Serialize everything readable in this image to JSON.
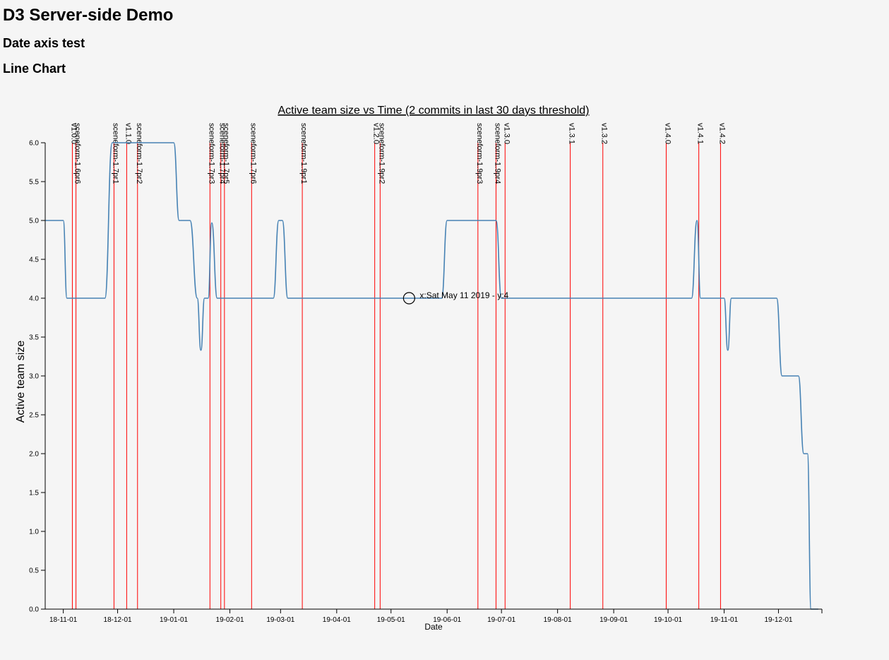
{
  "header": {
    "title": "D3 Server-side Demo",
    "subtitle": "Date axis test",
    "chart_type_label": "Line Chart"
  },
  "chart_data": {
    "type": "line",
    "title": "Active team size vs Time (2 commits in last 30 days threshold)",
    "xlabel": "Date",
    "ylabel": "Active team size",
    "xlim": [
      "2018-10-22",
      "2019-12-25"
    ],
    "ylim": [
      0,
      6
    ],
    "grid": false,
    "x_ticks": [
      {
        "date": "2018-11-01",
        "label": "18-11-01"
      },
      {
        "date": "2018-12-01",
        "label": "18-12-01"
      },
      {
        "date": "2019-01-01",
        "label": "19-01-01"
      },
      {
        "date": "2019-02-01",
        "label": "19-02-01"
      },
      {
        "date": "2019-03-01",
        "label": "19-03-01"
      },
      {
        "date": "2019-04-01",
        "label": "19-04-01"
      },
      {
        "date": "2019-05-01",
        "label": "19-05-01"
      },
      {
        "date": "2019-06-01",
        "label": "19-06-01"
      },
      {
        "date": "2019-07-01",
        "label": "19-07-01"
      },
      {
        "date": "2019-08-01",
        "label": "19-08-01"
      },
      {
        "date": "2019-09-01",
        "label": "19-09-01"
      },
      {
        "date": "2019-10-01",
        "label": "19-10-01"
      },
      {
        "date": "2019-11-01",
        "label": "19-11-01"
      },
      {
        "date": "2019-12-01",
        "label": "19-12-01"
      }
    ],
    "y_ticks": [
      "0.0",
      "0.5",
      "1.0",
      "1.5",
      "2.0",
      "2.5",
      "3.0",
      "3.5",
      "4.0",
      "4.5",
      "5.0",
      "5.5",
      "6.0"
    ],
    "series": [
      {
        "color": "#4682b4",
        "points": [
          [
            "2018-10-22",
            5
          ],
          [
            "2018-11-01",
            5
          ],
          [
            "2018-11-03",
            4
          ],
          [
            "2018-11-24",
            4
          ],
          [
            "2018-11-28",
            6
          ],
          [
            "2019-01-01",
            6
          ],
          [
            "2019-01-04",
            5
          ],
          [
            "2019-01-10",
            5
          ],
          [
            "2019-01-14",
            4
          ],
          [
            "2019-01-16",
            3.33
          ],
          [
            "2019-01-18",
            4
          ],
          [
            "2019-01-20",
            4
          ],
          [
            "2019-01-22",
            4.97
          ],
          [
            "2019-01-25",
            4
          ],
          [
            "2019-02-25",
            4
          ],
          [
            "2019-02-28",
            5
          ],
          [
            "2019-03-02",
            5
          ],
          [
            "2019-03-05",
            4
          ],
          [
            "2019-05-29",
            4
          ],
          [
            "2019-06-01",
            5
          ],
          [
            "2019-06-28",
            5
          ],
          [
            "2019-07-01",
            4
          ],
          [
            "2019-10-14",
            4
          ],
          [
            "2019-10-17",
            5
          ],
          [
            "2019-10-19",
            4
          ],
          [
            "2019-11-01",
            4
          ],
          [
            "2019-11-03",
            3.33
          ],
          [
            "2019-11-05",
            4
          ],
          [
            "2019-11-30",
            4
          ],
          [
            "2019-12-03",
            3
          ],
          [
            "2019-12-12",
            3
          ],
          [
            "2019-12-15",
            2
          ],
          [
            "2019-12-17",
            2
          ],
          [
            "2019-12-19",
            0
          ],
          [
            "2019-12-23",
            0
          ]
        ]
      }
    ],
    "releases": [
      {
        "date": "2018-11-06",
        "label": "v1.0.0"
      },
      {
        "date": "2018-11-08",
        "label": "sceneform-1.6pr6"
      },
      {
        "date": "2018-11-29",
        "label": "sceneform-1.7pr1"
      },
      {
        "date": "2018-12-06",
        "label": "v1.1.0"
      },
      {
        "date": "2018-12-12",
        "label": "sceneform-1.7pr2"
      },
      {
        "date": "2019-01-21",
        "label": "sceneform-1.7pr3"
      },
      {
        "date": "2019-01-27",
        "label": "sceneform-1.7pr4"
      },
      {
        "date": "2019-01-29",
        "label": "sceneform-1.7pr5"
      },
      {
        "date": "2019-02-13",
        "label": "sceneform-1.7pr6"
      },
      {
        "date": "2019-03-13",
        "label": "sceneform-1.9pr1"
      },
      {
        "date": "2019-04-22",
        "label": "v1.2.0"
      },
      {
        "date": "2019-04-25",
        "label": "sceneform-1.9pr2"
      },
      {
        "date": "2019-06-18",
        "label": "sceneform-1.9pr3"
      },
      {
        "date": "2019-06-28",
        "label": "sceneform-1.9pr4"
      },
      {
        "date": "2019-07-03",
        "label": "v1.3.0"
      },
      {
        "date": "2019-08-08",
        "label": "v1.3.1"
      },
      {
        "date": "2019-08-26",
        "label": "v1.3.2"
      },
      {
        "date": "2019-09-30",
        "label": "v1.4.0"
      },
      {
        "date": "2019-10-18",
        "label": "v1.4.1"
      },
      {
        "date": "2019-10-30",
        "label": "v1.4.2"
      }
    ],
    "annotation": {
      "date": "2019-05-11",
      "value": 4,
      "label": "x:Sat May 11 2019 - y:4"
    }
  }
}
